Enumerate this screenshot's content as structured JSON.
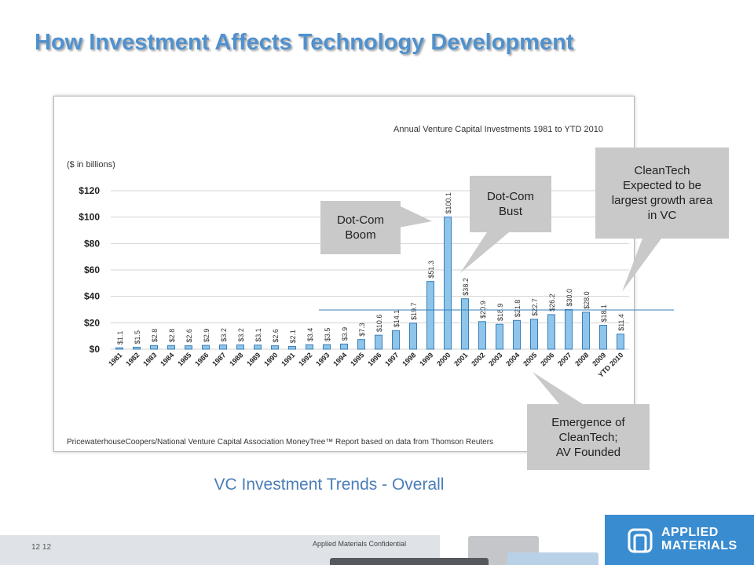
{
  "slide": {
    "title": "How Investment Affects Technology Development",
    "caption": "VC Investment Trends - Overall",
    "page_number": "12  12",
    "confidential": "Applied Materials Confidential"
  },
  "logo": {
    "text": "APPLIED\nMATERIALS",
    "mark": "®",
    "icon": "applied-materials-logo-icon"
  },
  "callouts": {
    "boom": "Dot-Com\nBoom",
    "bust": "Dot-Com\nBust",
    "cleantech_expected": "CleanTech\nExpected to be\nlargest growth area\nin VC",
    "emergence": "Emergence of\nCleanTech;\nAV Founded"
  },
  "colors": {
    "title": "#4f91cf",
    "bar_fill": "#8fc5ea",
    "bar_stroke": "#3a7fb8",
    "callout_bg": "#c9c9c9",
    "caption": "#4a7eb8",
    "logo_bg": "#3a8cd0"
  },
  "chart_data": {
    "type": "bar",
    "title": "Annual Venture Capital Investments 1981 to YTD 2010",
    "units_label": "($ in billions)",
    "source": "PricewaterhouseCoopers/National Venture Capital Association MoneyTree™ Report based on data from Thomson Reuters",
    "categories": [
      "1981",
      "1982",
      "1983",
      "1984",
      "1985",
      "1986",
      "1987",
      "1988",
      "1989",
      "1990",
      "1991",
      "1992",
      "1993",
      "1994",
      "1995",
      "1996",
      "1997",
      "1998",
      "1999",
      "2000",
      "2001",
      "2002",
      "2003",
      "2004",
      "2005",
      "2006",
      "2007",
      "2008",
      "2009",
      "YTD 2010"
    ],
    "values": [
      1.1,
      1.5,
      2.8,
      2.8,
      2.6,
      2.9,
      3.2,
      3.2,
      3.1,
      2.6,
      2.1,
      3.4,
      3.5,
      3.9,
      7.3,
      10.6,
      14.1,
      19.7,
      51.3,
      100.1,
      38.2,
      20.9,
      18.9,
      21.8,
      22.7,
      26.2,
      30.0,
      28.0,
      18.1,
      11.4
    ],
    "value_labels": [
      "$1.1",
      "$1.5",
      "$2.8",
      "$2.8",
      "$2.6",
      "$2.9",
      "$3.2",
      "$3.2",
      "$3.1",
      "$2.6",
      "$2.1",
      "$3.4",
      "$3.5",
      "$3.9",
      "$7.3",
      "$10.6",
      "$14.1",
      "$19.7",
      "$51.3",
      "$100.1",
      "$38.2",
      "$20.9",
      "$18.9",
      "$21.8",
      "$22.7",
      "$26.2",
      "$30.0",
      "$28.0",
      "$18.1",
      "$11.4"
    ],
    "yticks": [
      0,
      20,
      40,
      60,
      80,
      100,
      120
    ],
    "ytick_labels": [
      "$0",
      "$20",
      "$40",
      "$60",
      "$80",
      "$100",
      "$120"
    ],
    "ylim": [
      0,
      120
    ],
    "grid": true,
    "reference_line_value": 30
  }
}
